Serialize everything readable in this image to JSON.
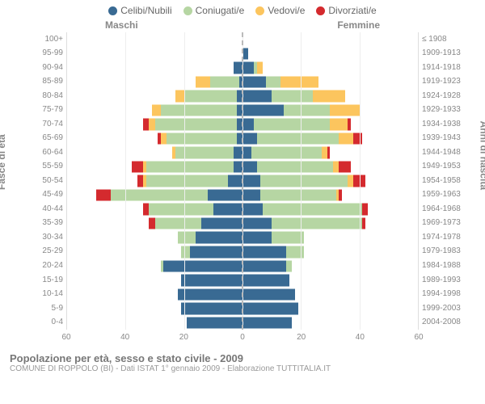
{
  "legend": {
    "items": [
      {
        "label": "Celibi/Nubili",
        "color": "#396a93"
      },
      {
        "label": "Coniugati/e",
        "color": "#b6d6a3"
      },
      {
        "label": "Vedovi/e",
        "color": "#fcc55e"
      },
      {
        "label": "Divorziati/e",
        "color": "#d42a2e"
      }
    ]
  },
  "headers": {
    "male": "Maschi",
    "female": "Femmine"
  },
  "axes": {
    "left_title": "Fasce di età",
    "right_title": "Anni di nascita",
    "xmax": 60,
    "xticks": [
      60,
      40,
      20,
      0,
      20,
      40,
      60
    ],
    "left_labels": [
      "100+",
      "95-99",
      "90-94",
      "85-89",
      "80-84",
      "75-79",
      "70-74",
      "65-69",
      "60-64",
      "55-59",
      "50-54",
      "45-49",
      "40-44",
      "35-39",
      "30-34",
      "25-29",
      "20-24",
      "15-19",
      "10-14",
      "5-9",
      "0-4"
    ],
    "right_labels": [
      "≤ 1908",
      "1909-1913",
      "1914-1918",
      "1919-1923",
      "1924-1928",
      "1929-1933",
      "1934-1938",
      "1939-1943",
      "1944-1948",
      "1949-1953",
      "1954-1958",
      "1959-1963",
      "1964-1968",
      "1969-1973",
      "1974-1978",
      "1979-1983",
      "1984-1988",
      "1989-1993",
      "1994-1998",
      "1999-2003",
      "2004-2008"
    ]
  },
  "colors": {
    "single": "#396a93",
    "married": "#b6d6a3",
    "widowed": "#fcc55e",
    "divorced": "#d42a2e",
    "grid": "#eeeeee",
    "center": "#bbbbbb",
    "bg": "#ffffff"
  },
  "pyramid": {
    "order": [
      "single",
      "married",
      "widowed",
      "divorced"
    ],
    "rows": [
      {
        "age": "100+",
        "m": {
          "single": 0,
          "married": 0,
          "widowed": 0,
          "divorced": 0
        },
        "f": {
          "single": 0,
          "married": 0,
          "widowed": 0,
          "divorced": 0
        }
      },
      {
        "age": "95-99",
        "m": {
          "single": 0,
          "married": 0,
          "widowed": 0,
          "divorced": 0
        },
        "f": {
          "single": 2,
          "married": 0,
          "widowed": 0,
          "divorced": 0
        }
      },
      {
        "age": "90-94",
        "m": {
          "single": 3,
          "married": 0,
          "widowed": 0,
          "divorced": 0
        },
        "f": {
          "single": 4,
          "married": 1,
          "widowed": 2,
          "divorced": 0
        }
      },
      {
        "age": "85-89",
        "m": {
          "single": 1,
          "married": 10,
          "widowed": 5,
          "divorced": 0
        },
        "f": {
          "single": 8,
          "married": 5,
          "widowed": 13,
          "divorced": 0
        }
      },
      {
        "age": "80-84",
        "m": {
          "single": 2,
          "married": 18,
          "widowed": 3,
          "divorced": 0
        },
        "f": {
          "single": 10,
          "married": 14,
          "widowed": 11,
          "divorced": 0
        }
      },
      {
        "age": "75-79",
        "m": {
          "single": 2,
          "married": 26,
          "widowed": 3,
          "divorced": 0
        },
        "f": {
          "single": 14,
          "married": 16,
          "widowed": 10,
          "divorced": 0
        }
      },
      {
        "age": "70-74",
        "m": {
          "single": 2,
          "married": 28,
          "widowed": 2,
          "divorced": 2
        },
        "f": {
          "single": 4,
          "married": 26,
          "widowed": 6,
          "divorced": 1
        }
      },
      {
        "age": "65-69",
        "m": {
          "single": 2,
          "married": 24,
          "widowed": 2,
          "divorced": 1
        },
        "f": {
          "single": 5,
          "married": 28,
          "widowed": 5,
          "divorced": 3
        }
      },
      {
        "age": "60-64",
        "m": {
          "single": 3,
          "married": 20,
          "widowed": 1,
          "divorced": 0
        },
        "f": {
          "single": 3,
          "married": 24,
          "widowed": 2,
          "divorced": 1
        }
      },
      {
        "age": "55-59",
        "m": {
          "single": 3,
          "married": 30,
          "widowed": 1,
          "divorced": 4
        },
        "f": {
          "single": 5,
          "married": 26,
          "widowed": 2,
          "divorced": 4
        }
      },
      {
        "age": "50-54",
        "m": {
          "single": 5,
          "married": 28,
          "widowed": 1,
          "divorced": 2
        },
        "f": {
          "single": 6,
          "married": 30,
          "widowed": 2,
          "divorced": 4
        }
      },
      {
        "age": "45-49",
        "m": {
          "single": 12,
          "married": 33,
          "widowed": 0,
          "divorced": 5
        },
        "f": {
          "single": 6,
          "married": 26,
          "widowed": 1,
          "divorced": 1
        }
      },
      {
        "age": "40-44",
        "m": {
          "single": 10,
          "married": 22,
          "widowed": 0,
          "divorced": 2
        },
        "f": {
          "single": 7,
          "married": 34,
          "widowed": 0,
          "divorced": 2
        }
      },
      {
        "age": "35-39",
        "m": {
          "single": 14,
          "married": 16,
          "widowed": 0,
          "divorced": 2
        },
        "f": {
          "single": 10,
          "married": 31,
          "widowed": 0,
          "divorced": 1
        }
      },
      {
        "age": "30-34",
        "m": {
          "single": 16,
          "married": 6,
          "widowed": 0,
          "divorced": 0
        },
        "f": {
          "single": 10,
          "married": 11,
          "widowed": 0,
          "divorced": 0
        }
      },
      {
        "age": "25-29",
        "m": {
          "single": 18,
          "married": 3,
          "widowed": 0,
          "divorced": 0
        },
        "f": {
          "single": 15,
          "married": 6,
          "widowed": 0,
          "divorced": 0
        }
      },
      {
        "age": "20-24",
        "m": {
          "single": 27,
          "married": 1,
          "widowed": 0,
          "divorced": 0
        },
        "f": {
          "single": 15,
          "married": 2,
          "widowed": 0,
          "divorced": 0
        }
      },
      {
        "age": "15-19",
        "m": {
          "single": 21,
          "married": 0,
          "widowed": 0,
          "divorced": 0
        },
        "f": {
          "single": 16,
          "married": 0,
          "widowed": 0,
          "divorced": 0
        }
      },
      {
        "age": "10-14",
        "m": {
          "single": 22,
          "married": 0,
          "widowed": 0,
          "divorced": 0
        },
        "f": {
          "single": 18,
          "married": 0,
          "widowed": 0,
          "divorced": 0
        }
      },
      {
        "age": "5-9",
        "m": {
          "single": 21,
          "married": 0,
          "widowed": 0,
          "divorced": 0
        },
        "f": {
          "single": 19,
          "married": 0,
          "widowed": 0,
          "divorced": 0
        }
      },
      {
        "age": "0-4",
        "m": {
          "single": 19,
          "married": 0,
          "widowed": 0,
          "divorced": 0
        },
        "f": {
          "single": 17,
          "married": 0,
          "widowed": 0,
          "divorced": 0
        }
      }
    ]
  },
  "caption": {
    "title": "Popolazione per età, sesso e stato civile - 2009",
    "sub": "COMUNE DI ROPPOLO (BI) - Dati ISTAT 1° gennaio 2009 - Elaborazione TUTTITALIA.IT"
  }
}
